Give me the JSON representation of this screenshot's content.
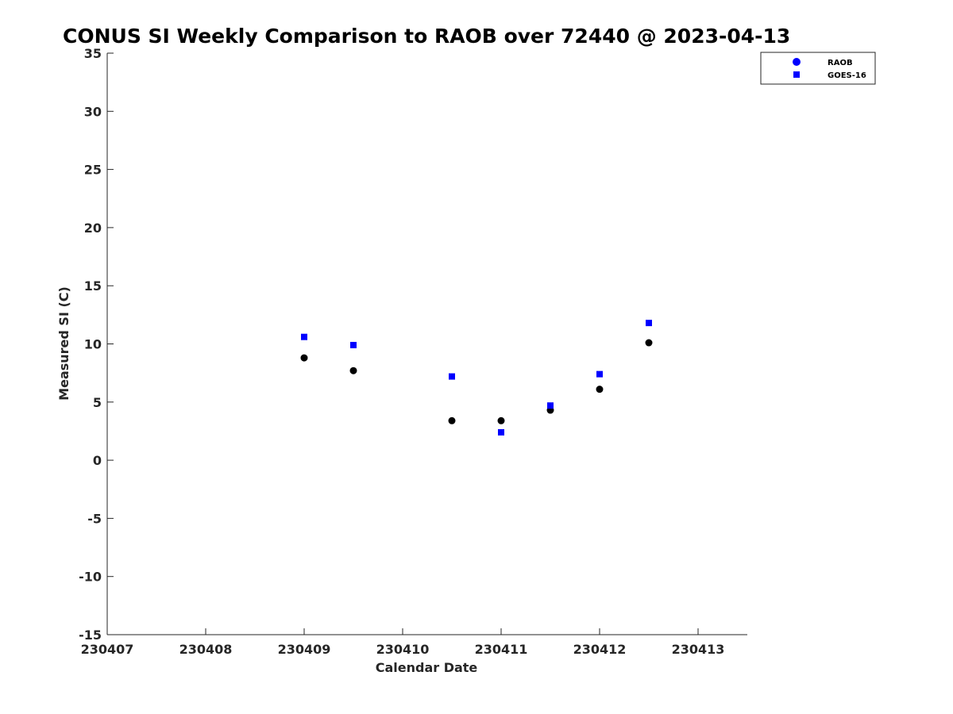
{
  "chart_data": {
    "type": "scatter",
    "title": "CONUS SI Weekly Comparison to RAOB over 72440 @ 2023-04-13",
    "xlabel": "Calendar Date",
    "ylabel": "Measured SI (C)",
    "xlim": [
      230407,
      230413.5
    ],
    "ylim": [
      -15,
      35
    ],
    "xticks": [
      230407,
      230408,
      230409,
      230410,
      230411,
      230412,
      230413
    ],
    "xtick_labels": [
      "230407",
      "230408",
      "230409",
      "230410",
      "230411",
      "230412",
      "230413"
    ],
    "yticks": [
      -15,
      -10,
      -5,
      0,
      5,
      10,
      15,
      20,
      25,
      30,
      35
    ],
    "ytick_labels": [
      "-15",
      "-10",
      "-5",
      "0",
      "5",
      "10",
      "15",
      "20",
      "25",
      "30",
      "35"
    ],
    "grid": false,
    "legend_position": "top-right",
    "series": [
      {
        "name": "RAOB",
        "marker": "circle",
        "color": "#000000",
        "legend_color": "#0000ff",
        "x": [
          230409,
          230409.5,
          230410.5,
          230411,
          230411.5,
          230412,
          230412.5
        ],
        "y": [
          8.8,
          7.7,
          3.4,
          3.4,
          4.3,
          6.1,
          10.1
        ]
      },
      {
        "name": "GOES-16",
        "marker": "square",
        "color": "#0000ff",
        "legend_color": "#0000ff",
        "x": [
          230409,
          230409.5,
          230410.5,
          230411,
          230411.5,
          230412,
          230412.5
        ],
        "y": [
          10.6,
          9.9,
          7.2,
          2.4,
          4.7,
          7.4,
          11.8
        ]
      }
    ]
  }
}
